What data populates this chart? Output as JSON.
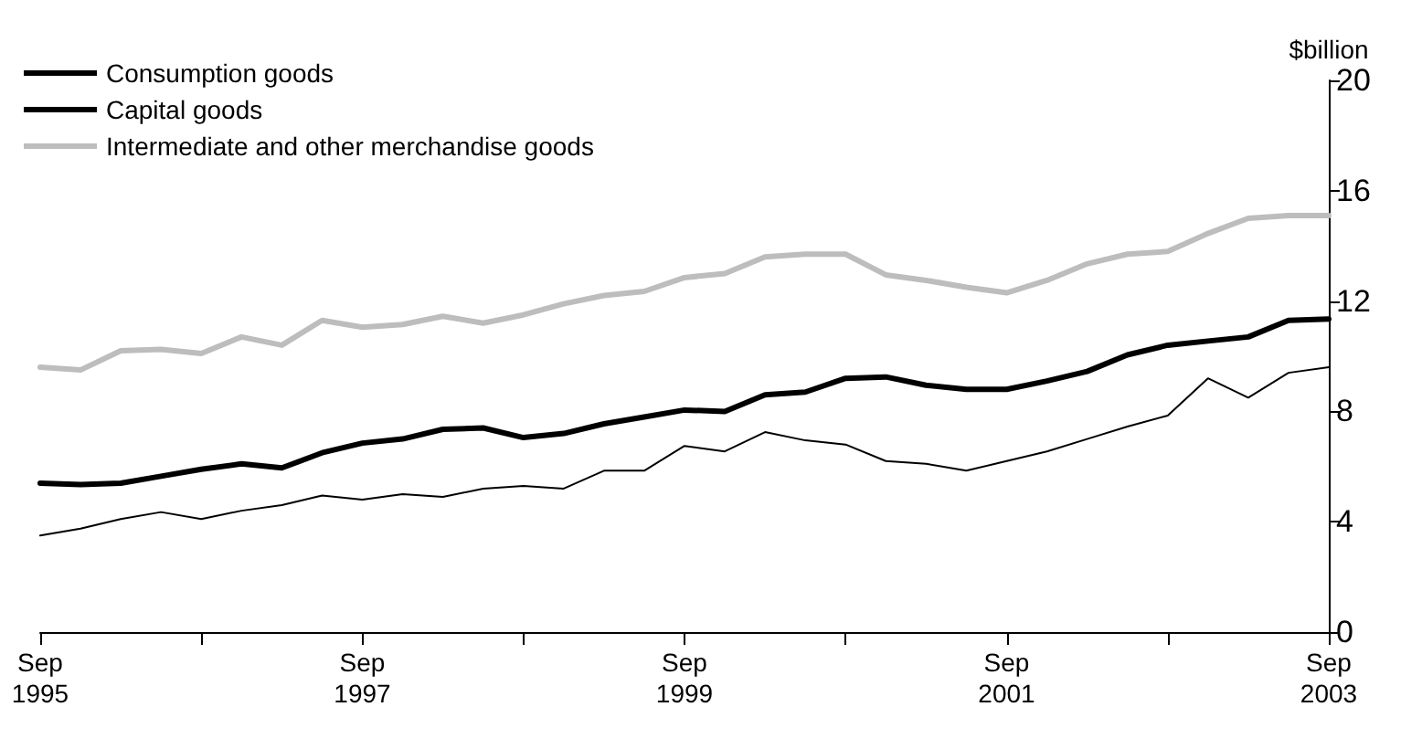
{
  "chart_data": {
    "type": "line",
    "ylabel": "$billion",
    "categories": [
      "Sep 1995",
      null,
      null,
      null,
      null,
      null,
      null,
      null,
      "Sep 1997",
      null,
      null,
      null,
      null,
      null,
      null,
      null,
      "Sep 1999",
      null,
      null,
      null,
      null,
      null,
      null,
      null,
      "Sep 2001",
      null,
      null,
      null,
      null,
      null,
      null,
      null,
      "Sep 2003"
    ],
    "series": [
      {
        "name": "Consumption goods",
        "color": "#000000",
        "values": [
          5.4,
          5.35,
          5.4,
          5.65,
          5.9,
          6.1,
          5.95,
          6.5,
          6.85,
          7.0,
          7.35,
          7.4,
          7.05,
          7.2,
          7.55,
          7.8,
          8.05,
          8.0,
          8.6,
          8.7,
          9.2,
          9.25,
          8.95,
          8.8,
          8.8,
          9.1,
          9.45,
          10.05,
          10.4,
          10.55,
          10.7,
          11.3,
          11.35
        ]
      },
      {
        "name": "Capital goods",
        "color": "#000000",
        "values": [
          3.5,
          3.75,
          4.1,
          4.35,
          4.1,
          4.4,
          4.6,
          4.95,
          4.8,
          5.0,
          4.9,
          5.2,
          5.3,
          5.2,
          5.85,
          5.85,
          6.75,
          6.55,
          7.25,
          6.95,
          6.8,
          6.2,
          6.1,
          5.85,
          6.2,
          6.55,
          7.0,
          7.45,
          7.85,
          9.2,
          8.5,
          9.4,
          9.6
        ]
      },
      {
        "name": "Intermediate and other merchandise goods",
        "color": "#bdbdbd",
        "values": [
          9.6,
          9.5,
          10.2,
          10.25,
          10.1,
          10.7,
          10.4,
          11.3,
          11.05,
          11.15,
          11.45,
          11.2,
          11.5,
          11.9,
          12.2,
          12.35,
          12.85,
          13.0,
          13.6,
          13.7,
          13.7,
          12.95,
          12.75,
          12.5,
          12.3,
          12.75,
          13.35,
          13.7,
          13.8,
          14.45,
          15.0,
          15.1,
          15.1
        ]
      }
    ],
    "ylim": [
      0,
      20
    ],
    "yticks": [
      0,
      4,
      8,
      12,
      16,
      20
    ],
    "grid": false,
    "legend": "top left",
    "marker": "none",
    "line_style": "solid"
  }
}
